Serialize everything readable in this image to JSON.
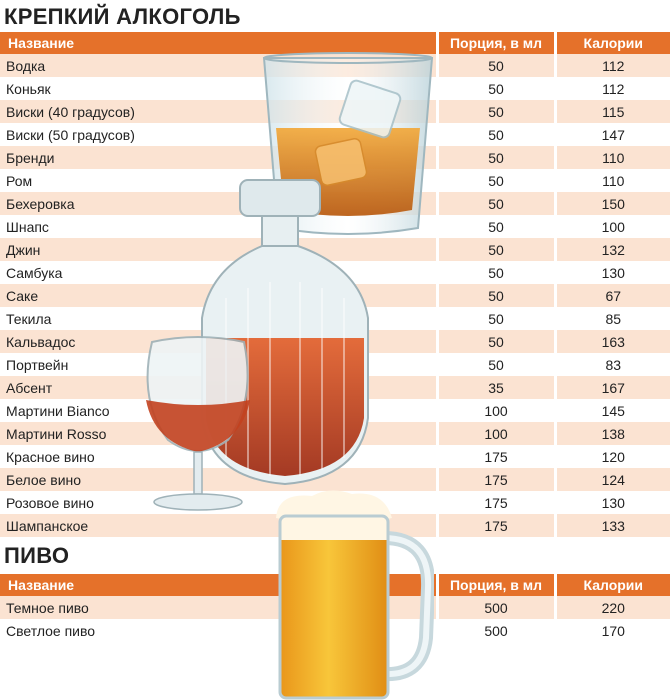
{
  "strong": {
    "title": "КРЕПКИЙ АЛКОГОЛЬ",
    "headers": [
      "Название",
      "Порция, в мл",
      "Калории"
    ],
    "rows": [
      [
        "Водка",
        "50",
        "112"
      ],
      [
        "Коньяк",
        "50",
        "112"
      ],
      [
        "Виски (40 градусов)",
        "50",
        "115"
      ],
      [
        "Виски (50 градусов)",
        "50",
        "147"
      ],
      [
        "Бренди",
        "50",
        "110"
      ],
      [
        "Ром",
        "50",
        "110"
      ],
      [
        "Бехеровка",
        "50",
        "150"
      ],
      [
        "Шнапс",
        "50",
        "100"
      ],
      [
        "Джин",
        "50",
        "132"
      ],
      [
        "Самбука",
        "50",
        "130"
      ],
      [
        "Саке",
        "50",
        "67"
      ],
      [
        "Текила",
        "50",
        "85"
      ],
      [
        "Кальвадос",
        "50",
        "163"
      ],
      [
        "Портвейн",
        "50",
        "83"
      ],
      [
        "Абсент",
        "35",
        "167"
      ],
      [
        "Мартини Bianco",
        "100",
        "145"
      ],
      [
        "Мартини Rosso",
        "100",
        "138"
      ],
      [
        "Красное вино",
        "175",
        "120"
      ],
      [
        "Белое вино",
        "175",
        "124"
      ],
      [
        "Розовое вино",
        "175",
        "130"
      ],
      [
        "Шампанское",
        "175",
        "133"
      ]
    ]
  },
  "beer": {
    "title": "ПИВО",
    "headers": [
      "Название",
      "Порция, в мл",
      "Калории"
    ],
    "rows": [
      [
        "Темное пиво",
        "500",
        "220"
      ],
      [
        "Светлое пиво",
        "500",
        "170"
      ]
    ]
  },
  "colors": {
    "header": "#e5712a",
    "stripe": "#fbe3d2",
    "amber": "#d9822b",
    "beer": "#f2b21f"
  },
  "images": [
    "whisky-glass-icon",
    "decanter-icon",
    "brandy-snifter-icon",
    "beer-mug-icon"
  ]
}
